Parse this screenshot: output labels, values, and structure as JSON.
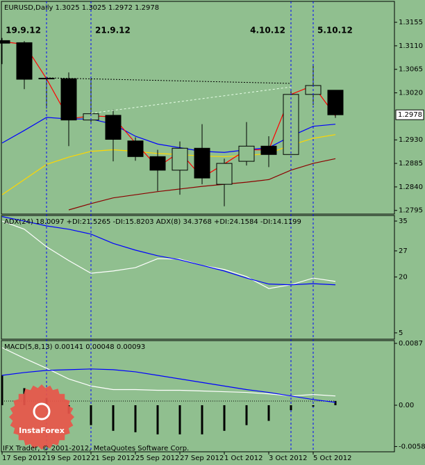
{
  "chart_data": [
    {
      "type": "candlestick",
      "title": "EURUSD,Daily  1.3025 1.3025 1.2972 1.2978",
      "categories": [
        "17 Sep 2012",
        null,
        "19 Sep 2012",
        null,
        "21 Sep 2012",
        null,
        "25 Sep 2012",
        null,
        "27 Sep 2012",
        null,
        "1 Oct 2012",
        null,
        "3 Oct 2012",
        null,
        "5 Oct 2012",
        null
      ],
      "open": [
        1.312,
        1.3116,
        1.3048,
        1.3047,
        1.2968,
        1.2977,
        1.2928,
        1.2898,
        1.2872,
        1.2914,
        1.2845,
        1.2889,
        1.2918,
        1.2902,
        1.3017,
        1.3025
      ],
      "high": [
        1.3125,
        1.3119,
        1.305,
        1.3059,
        1.305,
        1.2988,
        1.2935,
        1.2911,
        1.2927,
        1.296,
        1.2894,
        1.2964,
        1.2937,
        1.3023,
        1.3072,
        1.3025
      ],
      "low": [
        1.3075,
        1.3027,
        1.299,
        1.2918,
        1.2964,
        1.2889,
        1.289,
        1.2832,
        1.2825,
        1.2845,
        1.2803,
        1.2881,
        1.2878,
        1.2902,
        1.2997,
        1.2972
      ],
      "close": [
        1.3115,
        1.3046,
        1.3048,
        1.2968,
        1.298,
        1.2931,
        1.2898,
        1.2872,
        1.2914,
        1.2857,
        1.2885,
        1.2918,
        1.2902,
        1.3017,
        1.3034,
        1.2978
      ],
      "up_color": "#90bf8f",
      "down_color": "#000000",
      "series": [
        {
          "color": "#0000ff",
          "values": [
            1.2924,
            1.2948,
            1.2973,
            1.297,
            1.297,
            1.296,
            1.2937,
            1.2922,
            1.2915,
            1.2908,
            1.2906,
            1.2911,
            1.2915,
            1.2937,
            1.2956,
            1.296
          ]
        },
        {
          "color": "#ffd700",
          "values": [
            1.2825,
            1.2854,
            1.2883,
            1.2897,
            1.2908,
            1.2911,
            1.2908,
            1.2904,
            1.2902,
            1.2899,
            1.2898,
            1.29,
            1.2904,
            1.292,
            1.2933,
            1.294
          ]
        },
        {
          "color": "#ff0000",
          "values": [
            1.3118,
            1.3113,
            1.3047,
            1.297,
            1.2976,
            1.2974,
            1.2924,
            1.2878,
            1.2907,
            1.2858,
            1.2884,
            1.2911,
            1.2911,
            1.3017,
            1.3034,
            1.2976
          ]
        },
        {
          "color": "#8b0000",
          "values": [
            null,
            null,
            null,
            1.2796,
            1.2808,
            1.2819,
            1.2825,
            1.2831,
            1.2836,
            1.2841,
            1.2845,
            1.2849,
            1.2854,
            1.2872,
            1.2885,
            1.2894
          ]
        }
      ],
      "ylim": [
        1.2788,
        1.3195
      ],
      "yticks": [
        1.3155,
        {
          "value": 1.311,
          "label": "1.3110"
        },
        1.3065,
        {
          "value": 1.302,
          "label": "1.3020"
        },
        {
          "value": 1.293,
          "label": "1.2930"
        },
        1.2885,
        {
          "value": 1.284,
          "label": "1.2840"
        },
        1.2795
      ],
      "last_price": 1.2978,
      "annotations": [
        {
          "x": 2,
          "label": "19.9.12"
        },
        {
          "x": 4,
          "label": "21.9.12"
        },
        {
          "x": 13,
          "label": "4.10.12"
        },
        {
          "x": 14,
          "label": "5.10.12"
        }
      ]
    },
    {
      "type": "line",
      "title": "ADX(24) 18.0097 +DI:21.5265 -DI:15.8203  ADX(8) 34.3768 +DI:24.1584 -DI:14.1199",
      "series": [
        {
          "color": "#ffffff",
          "values": [
            35.0,
            32.8,
            28.1,
            24.4,
            21.0,
            21.6,
            22.5,
            24.9,
            24.8,
            23.1,
            22.0,
            20.1,
            16.9,
            17.9,
            19.7,
            18.8
          ]
        },
        {
          "color": "#0000ff",
          "values": [
            36.2,
            35.0,
            33.7,
            32.8,
            31.5,
            29.0,
            27.2,
            25.7,
            24.6,
            23.1,
            21.6,
            19.7,
            18.1,
            17.9,
            18.2,
            17.9
          ]
        }
      ],
      "ylim": [
        3.3,
        36.5
      ],
      "yticks": [
        35,
        27,
        20,
        5
      ]
    },
    {
      "type": "bar",
      "title": "MACD(5,8,13) 0.00141 0.00048 0.00093",
      "values": [
        0.0042,
        0.0024,
        0.001,
        -0.0012,
        -0.0028,
        -0.0036,
        -0.0038,
        -0.0041,
        -0.0041,
        -0.0041,
        -0.0036,
        -0.0028,
        -0.0022,
        -0.0007,
        -0.0002,
        0.0006
      ],
      "color": "#000000",
      "series": [
        {
          "color": "#ffffff",
          "values": [
            0.0081,
            0.0066,
            0.0052,
            0.0037,
            0.0027,
            0.0022,
            0.0022,
            0.0021,
            0.0021,
            0.002,
            0.0019,
            0.0018,
            0.0016,
            0.0013,
            0.0015,
            0.0013
          ]
        },
        {
          "color": "#0000ff",
          "values": [
            0.0042,
            0.0046,
            0.0049,
            0.005,
            0.0051,
            0.005,
            0.0047,
            0.0042,
            0.0037,
            0.0032,
            0.0027,
            0.0022,
            0.0018,
            0.0013,
            0.0008,
            0.0004
          ]
        }
      ],
      "ylim": [
        -0.00655,
        0.00909
      ],
      "yticks": [
        0.0087,
        {
          "value": 0,
          "label": "0.00"
        },
        -0.00581
      ]
    }
  ],
  "watermark": {
    "logo": "InstaForex",
    "copyright": "IFX Trader, © 2001-2012, MetaQuotes Software Corp."
  }
}
